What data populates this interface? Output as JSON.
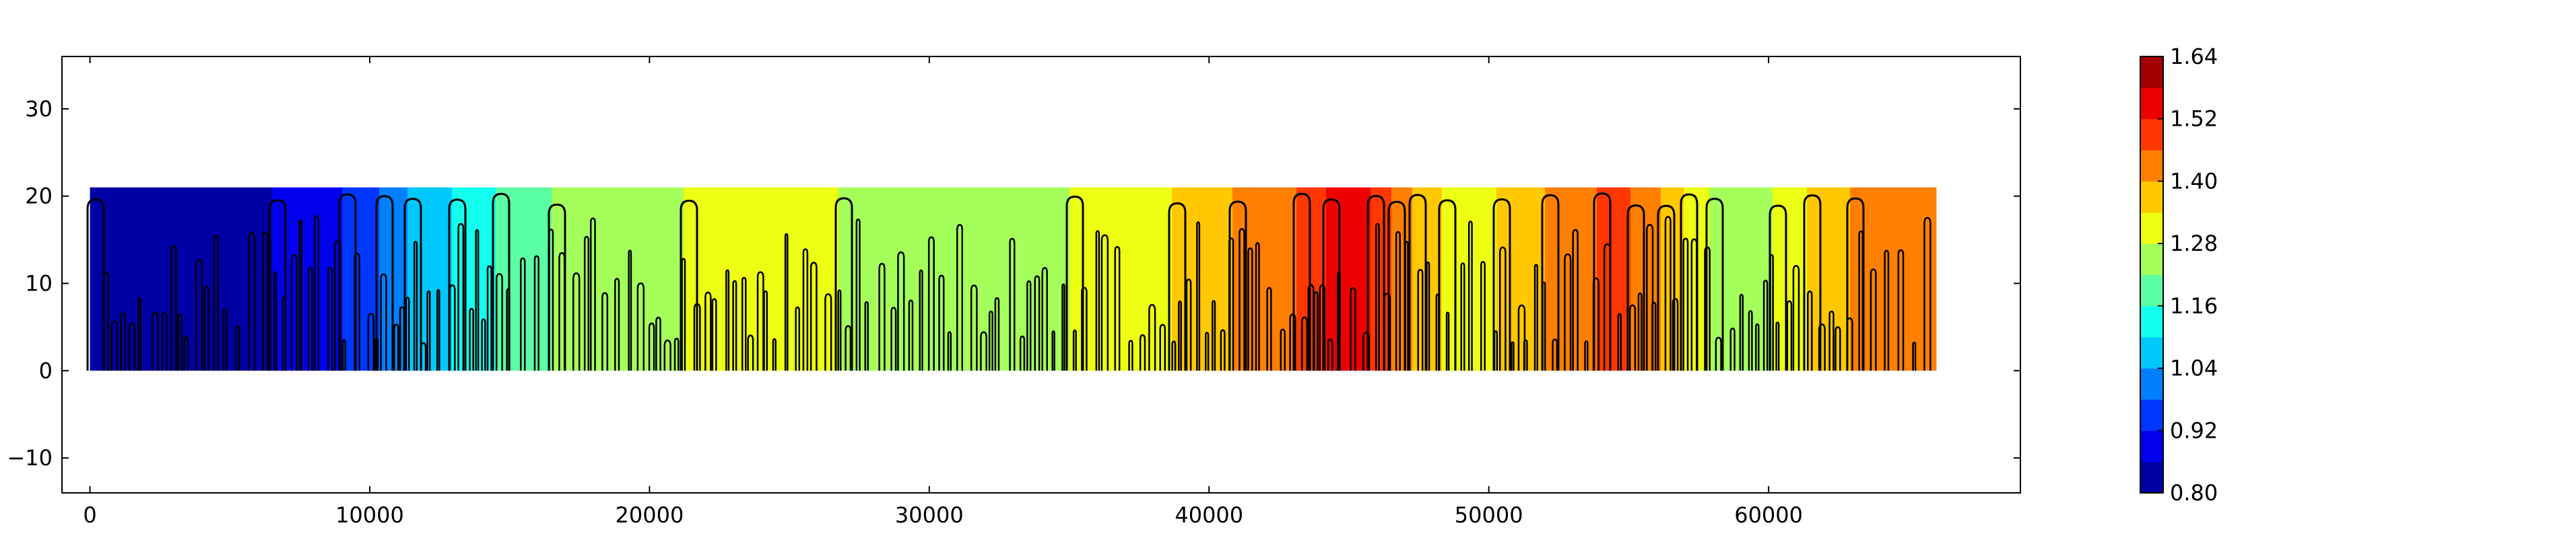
{
  "chart_data": {
    "type": "heatmap",
    "subtype": "filled-contour",
    "title": "",
    "xlabel": "",
    "ylabel": "",
    "xlim": [
      -1000,
      69000
    ],
    "ylim": [
      -14,
      36
    ],
    "data_extent": {
      "x": [
        0,
        66000
      ],
      "y": [
        0,
        21
      ]
    },
    "x_ticks": [
      0,
      10000,
      20000,
      30000,
      40000,
      50000,
      60000
    ],
    "x_tick_labels": [
      "0",
      "10000",
      "20000",
      "30000",
      "40000",
      "50000",
      "60000"
    ],
    "y_ticks": [
      -10,
      0,
      10,
      20,
      30
    ],
    "y_tick_labels": [
      "−10",
      "0",
      "10",
      "20",
      "30"
    ],
    "colormap": "jet",
    "grid": false,
    "colorbar": {
      "min": 0.8,
      "max": 1.64,
      "levels": [
        0.8,
        0.86,
        0.92,
        0.98,
        1.04,
        1.1,
        1.16,
        1.22,
        1.28,
        1.34,
        1.4,
        1.46,
        1.52,
        1.58,
        1.64
      ],
      "tick_values": [
        0.8,
        0.92,
        1.04,
        1.16,
        1.28,
        1.4,
        1.52,
        1.64
      ],
      "tick_labels": [
        "0.80",
        "0.92",
        "1.04",
        "1.16",
        "1.28",
        "1.40",
        "1.52",
        "1.64"
      ]
    },
    "value_profile_along_x": {
      "x": [
        0,
        3000,
        6000,
        8500,
        10000,
        11500,
        13500,
        15500,
        17500,
        20000,
        23000,
        26000,
        29000,
        31500,
        34000,
        37000,
        39500,
        41500,
        43500,
        45000,
        46500,
        47500,
        48500,
        49500,
        51000,
        53000,
        54500,
        56000,
        57500,
        59000,
        60500,
        62000,
        63500,
        66000
      ],
      "values": [
        0.86,
        0.84,
        0.85,
        0.9,
        0.96,
        1.05,
        1.12,
        1.2,
        1.24,
        1.26,
        1.31,
        1.29,
        1.25,
        1.22,
        1.27,
        1.3,
        1.36,
        1.42,
        1.47,
        1.58,
        1.46,
        1.38,
        1.33,
        1.3,
        1.38,
        1.42,
        1.49,
        1.41,
        1.3,
        1.22,
        1.3,
        1.37,
        1.42,
        1.41
      ]
    }
  }
}
